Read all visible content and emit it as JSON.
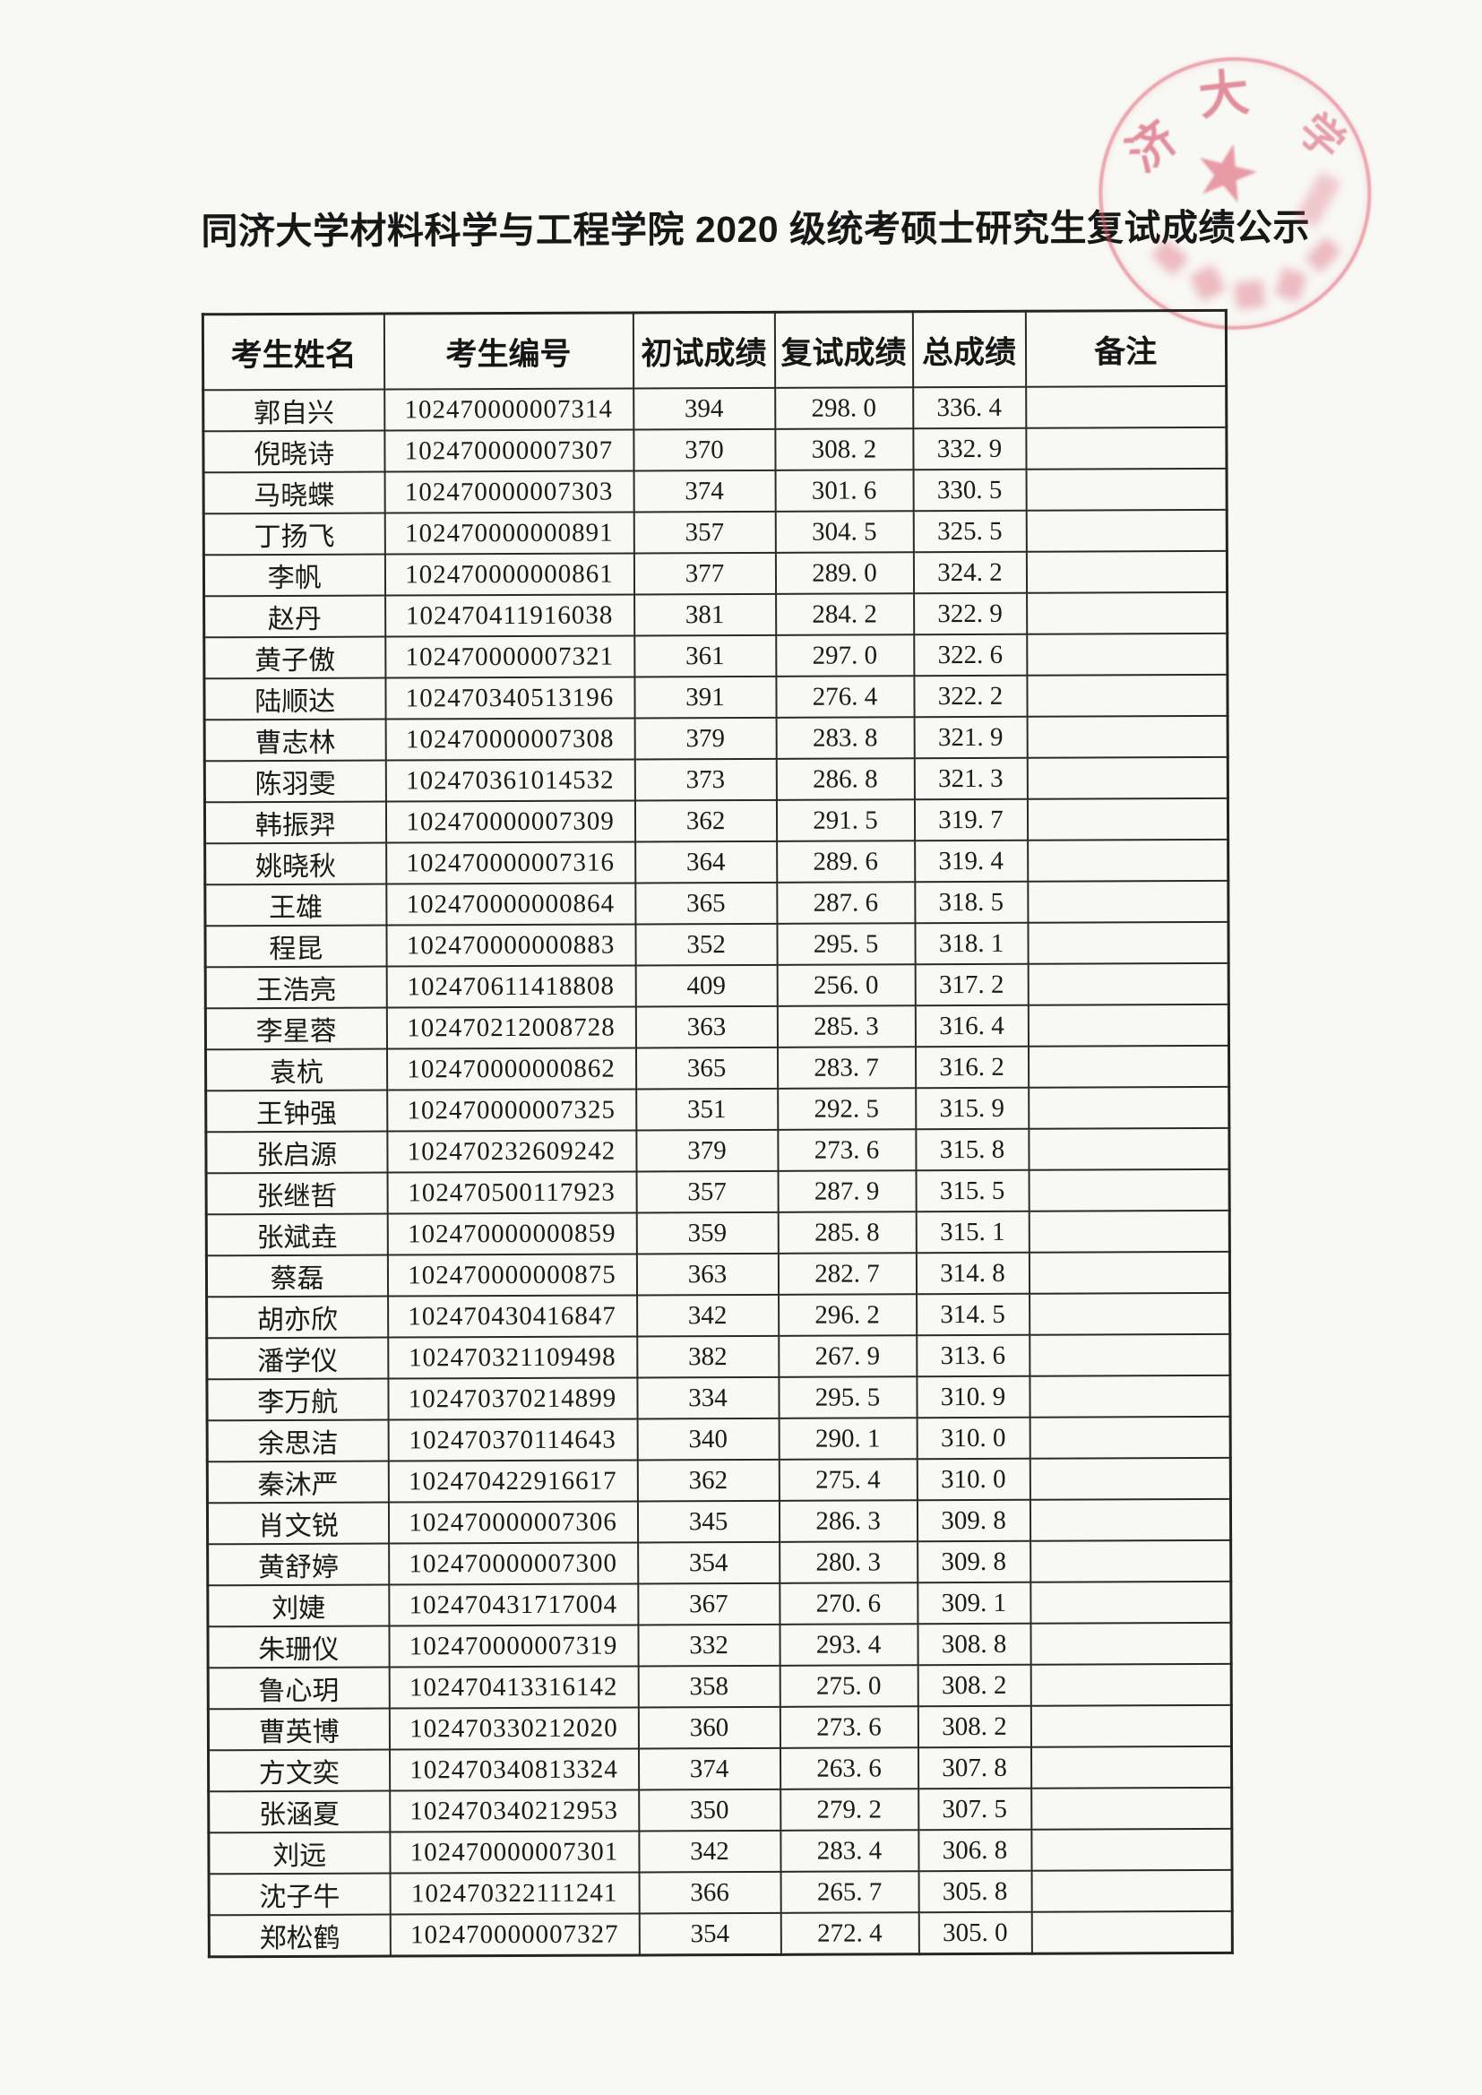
{
  "title": "同济大学材料科学与工程学院 2020 级统考硕士研究生复试成绩公示",
  "stamp": {
    "circle_color": "#e1586c",
    "characters": [
      "济",
      "大",
      "学"
    ],
    "star_glyph": "★"
  },
  "table": {
    "headers": [
      "考生姓名",
      "考生编号",
      "初试成绩",
      "复试成绩",
      "总成绩",
      "备注"
    ],
    "rows": [
      {
        "name": "郭自兴",
        "id": "102470000007314",
        "initial": "394",
        "retest": "298. 0",
        "total": "336. 4",
        "remark": ""
      },
      {
        "name": "倪晓诗",
        "id": "102470000007307",
        "initial": "370",
        "retest": "308. 2",
        "total": "332. 9",
        "remark": ""
      },
      {
        "name": "马晓蝶",
        "id": "102470000007303",
        "initial": "374",
        "retest": "301. 6",
        "total": "330. 5",
        "remark": ""
      },
      {
        "name": "丁扬飞",
        "id": "102470000000891",
        "initial": "357",
        "retest": "304. 5",
        "total": "325. 5",
        "remark": ""
      },
      {
        "name": "李帆",
        "id": "102470000000861",
        "initial": "377",
        "retest": "289. 0",
        "total": "324. 2",
        "remark": ""
      },
      {
        "name": "赵丹",
        "id": "102470411916038",
        "initial": "381",
        "retest": "284. 2",
        "total": "322. 9",
        "remark": ""
      },
      {
        "name": "黄子傲",
        "id": "102470000007321",
        "initial": "361",
        "retest": "297. 0",
        "total": "322. 6",
        "remark": ""
      },
      {
        "name": "陆顺达",
        "id": "102470340513196",
        "initial": "391",
        "retest": "276. 4",
        "total": "322. 2",
        "remark": ""
      },
      {
        "name": "曹志林",
        "id": "102470000007308",
        "initial": "379",
        "retest": "283. 8",
        "total": "321. 9",
        "remark": ""
      },
      {
        "name": "陈羽雯",
        "id": "102470361014532",
        "initial": "373",
        "retest": "286. 8",
        "total": "321. 3",
        "remark": ""
      },
      {
        "name": "韩振羿",
        "id": "102470000007309",
        "initial": "362",
        "retest": "291. 5",
        "total": "319. 7",
        "remark": ""
      },
      {
        "name": "姚晓秋",
        "id": "102470000007316",
        "initial": "364",
        "retest": "289. 6",
        "total": "319. 4",
        "remark": ""
      },
      {
        "name": "王雄",
        "id": "102470000000864",
        "initial": "365",
        "retest": "287. 6",
        "total": "318. 5",
        "remark": ""
      },
      {
        "name": "程昆",
        "id": "102470000000883",
        "initial": "352",
        "retest": "295. 5",
        "total": "318. 1",
        "remark": ""
      },
      {
        "name": "王浩亮",
        "id": "102470611418808",
        "initial": "409",
        "retest": "256. 0",
        "total": "317. 2",
        "remark": ""
      },
      {
        "name": "李星蓉",
        "id": "102470212008728",
        "initial": "363",
        "retest": "285. 3",
        "total": "316. 4",
        "remark": ""
      },
      {
        "name": "袁杭",
        "id": "102470000000862",
        "initial": "365",
        "retest": "283. 7",
        "total": "316. 2",
        "remark": ""
      },
      {
        "name": "王钟强",
        "id": "102470000007325",
        "initial": "351",
        "retest": "292. 5",
        "total": "315. 9",
        "remark": ""
      },
      {
        "name": "张启源",
        "id": "102470232609242",
        "initial": "379",
        "retest": "273. 6",
        "total": "315. 8",
        "remark": ""
      },
      {
        "name": "张继哲",
        "id": "102470500117923",
        "initial": "357",
        "retest": "287. 9",
        "total": "315. 5",
        "remark": ""
      },
      {
        "name": "张斌垚",
        "id": "102470000000859",
        "initial": "359",
        "retest": "285. 8",
        "total": "315. 1",
        "remark": ""
      },
      {
        "name": "蔡磊",
        "id": "102470000000875",
        "initial": "363",
        "retest": "282. 7",
        "total": "314. 8",
        "remark": ""
      },
      {
        "name": "胡亦欣",
        "id": "102470430416847",
        "initial": "342",
        "retest": "296. 2",
        "total": "314. 5",
        "remark": ""
      },
      {
        "name": "潘学仪",
        "id": "102470321109498",
        "initial": "382",
        "retest": "267. 9",
        "total": "313. 6",
        "remark": ""
      },
      {
        "name": "李万航",
        "id": "102470370214899",
        "initial": "334",
        "retest": "295. 5",
        "total": "310. 9",
        "remark": ""
      },
      {
        "name": "余思洁",
        "id": "102470370114643",
        "initial": "340",
        "retest": "290. 1",
        "total": "310. 0",
        "remark": ""
      },
      {
        "name": "秦沐严",
        "id": "102470422916617",
        "initial": "362",
        "retest": "275. 4",
        "total": "310. 0",
        "remark": ""
      },
      {
        "name": "肖文锐",
        "id": "102470000007306",
        "initial": "345",
        "retest": "286. 3",
        "total": "309. 8",
        "remark": ""
      },
      {
        "name": "黄舒婷",
        "id": "102470000007300",
        "initial": "354",
        "retest": "280. 3",
        "total": "309. 8",
        "remark": ""
      },
      {
        "name": "刘婕",
        "id": "102470431717004",
        "initial": "367",
        "retest": "270. 6",
        "total": "309. 1",
        "remark": ""
      },
      {
        "name": "朱珊仪",
        "id": "102470000007319",
        "initial": "332",
        "retest": "293. 4",
        "total": "308. 8",
        "remark": ""
      },
      {
        "name": "鲁心玥",
        "id": "102470413316142",
        "initial": "358",
        "retest": "275. 0",
        "total": "308. 2",
        "remark": ""
      },
      {
        "name": "曹英博",
        "id": "102470330212020",
        "initial": "360",
        "retest": "273. 6",
        "total": "308. 2",
        "remark": ""
      },
      {
        "name": "方文奕",
        "id": "102470340813324",
        "initial": "374",
        "retest": "263. 6",
        "total": "307. 8",
        "remark": ""
      },
      {
        "name": "张涵夏",
        "id": "102470340212953",
        "initial": "350",
        "retest": "279. 2",
        "total": "307. 5",
        "remark": ""
      },
      {
        "name": "刘远",
        "id": "102470000007301",
        "initial": "342",
        "retest": "283. 4",
        "total": "306. 8",
        "remark": ""
      },
      {
        "name": "沈子牛",
        "id": "102470322111241",
        "initial": "366",
        "retest": "265. 7",
        "total": "305. 8",
        "remark": ""
      },
      {
        "name": "郑松鹤",
        "id": "102470000007327",
        "initial": "354",
        "retest": "272. 4",
        "total": "305. 0",
        "remark": ""
      }
    ]
  }
}
